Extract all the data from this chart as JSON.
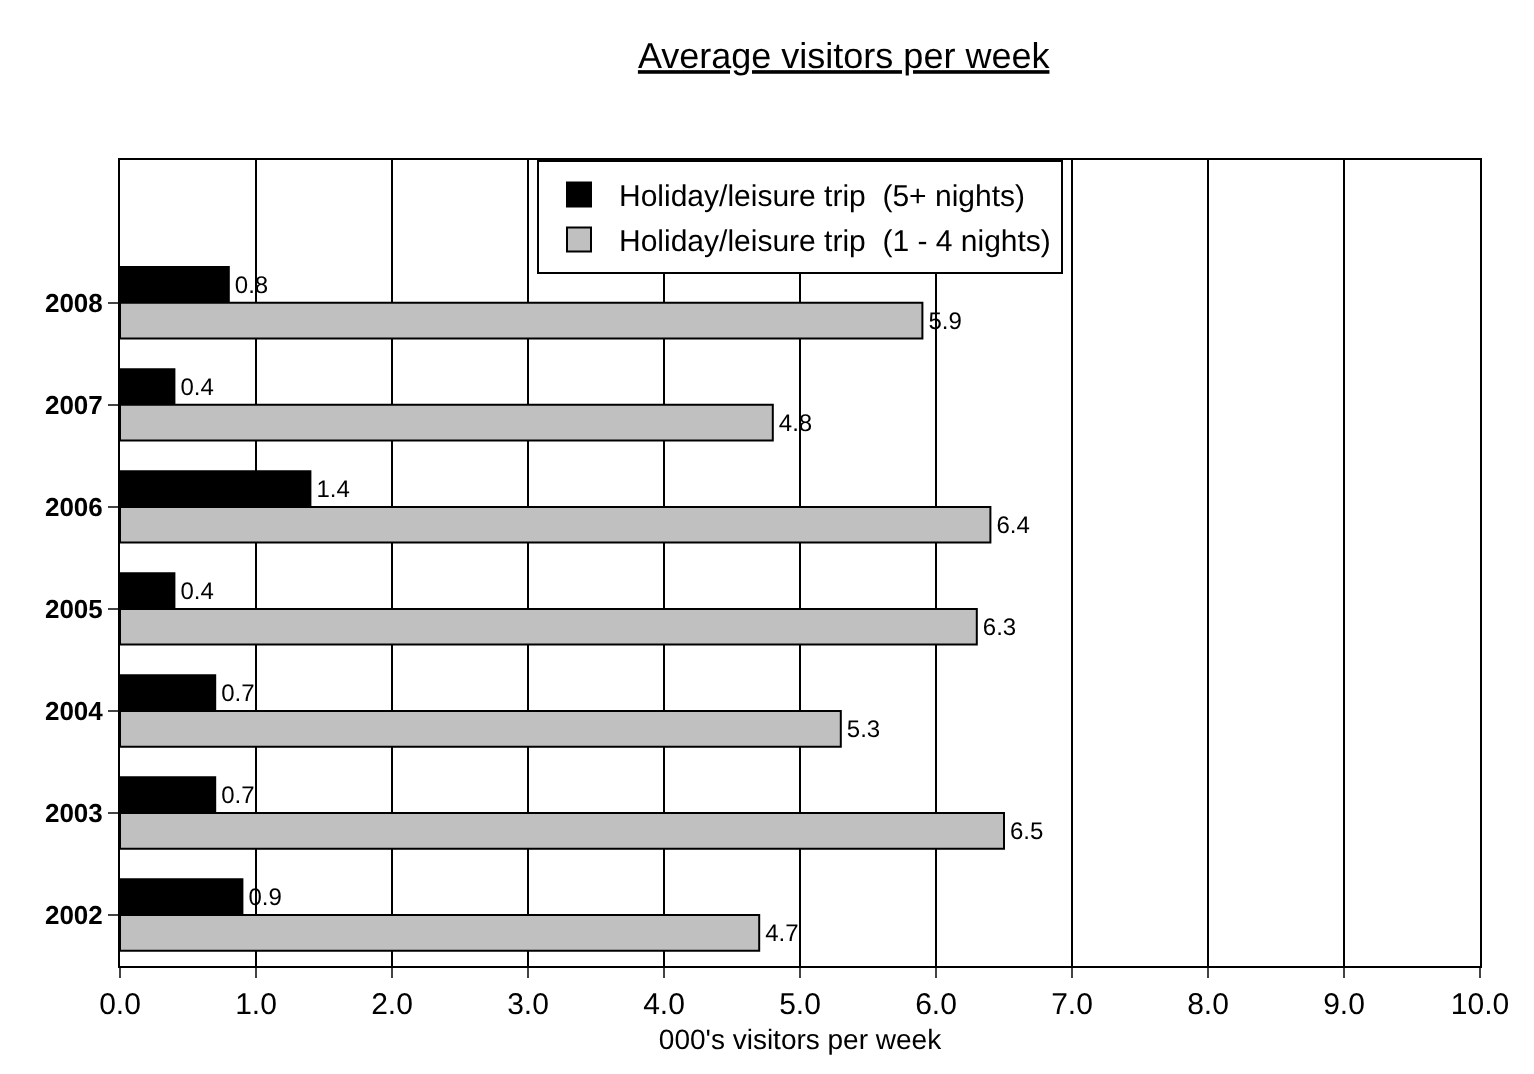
{
  "chart_data": {
    "type": "bar",
    "orientation": "horizontal",
    "title": "Average visitors per week",
    "xlabel": "000's visitors per week",
    "categories": [
      "2008",
      "2007",
      "2006",
      "2005",
      "2004",
      "2003",
      "2002"
    ],
    "series": [
      {
        "name": "Holiday/leisure trip  (5+ nights)",
        "color": "#000000",
        "values": [
          0.8,
          0.4,
          1.4,
          0.4,
          0.7,
          0.7,
          0.9
        ]
      },
      {
        "name": "Holiday/leisure trip  (1 - 4 nights)",
        "color": "#c0c0c0",
        "values": [
          5.9,
          4.8,
          6.4,
          6.3,
          5.3,
          6.5,
          4.7
        ]
      }
    ],
    "xlim": [
      0,
      10
    ],
    "xticks": [
      {
        "value": 0,
        "label": "0.0"
      },
      {
        "value": 1,
        "label": "1.0"
      },
      {
        "value": 2,
        "label": "2.0"
      },
      {
        "value": 3,
        "label": "3.0"
      },
      {
        "value": 4,
        "label": "4.0"
      },
      {
        "value": 5,
        "label": "5.0"
      },
      {
        "value": 6,
        "label": "6.0"
      },
      {
        "value": 7,
        "label": "7.0"
      },
      {
        "value": 8,
        "label": "8.0"
      },
      {
        "value": 9,
        "label": "9.0"
      },
      {
        "value": 10,
        "label": "10.0"
      }
    ],
    "grid": "x",
    "legend": "top",
    "data_labels": true
  }
}
